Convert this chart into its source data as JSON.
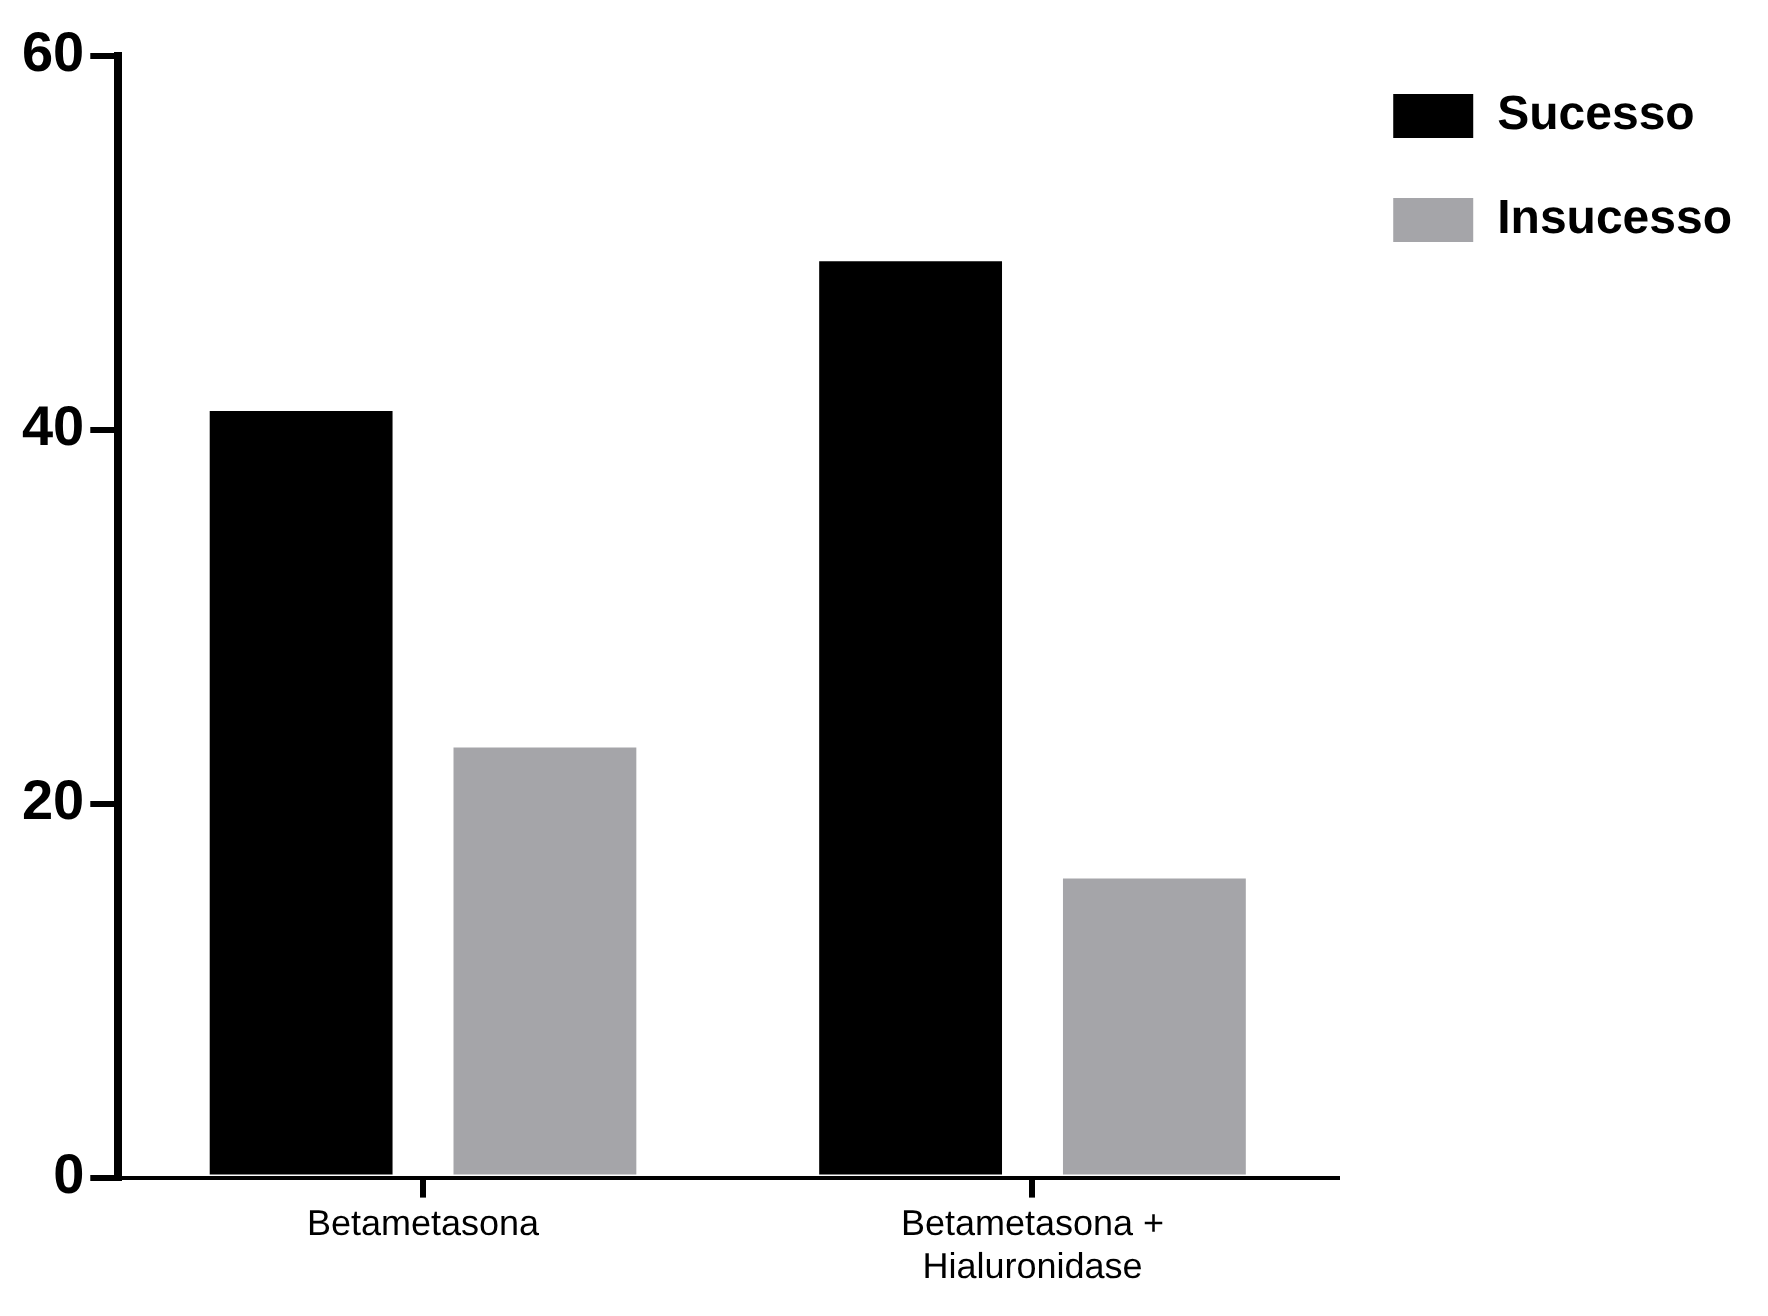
{
  "chart_data": {
    "type": "bar",
    "categories": [
      "Betametasona",
      "Betametasona + Hialuronidase"
    ],
    "series": [
      {
        "name": "Sucesso",
        "color": "#000000",
        "values": [
          41,
          49
        ]
      },
      {
        "name": "Insucesso",
        "color": "#a5a5a9",
        "values": [
          23,
          16
        ]
      }
    ],
    "ylim": [
      0,
      60
    ],
    "yticks": [
      0,
      20,
      40,
      60
    ],
    "grid": false,
    "legend": "top right"
  }
}
